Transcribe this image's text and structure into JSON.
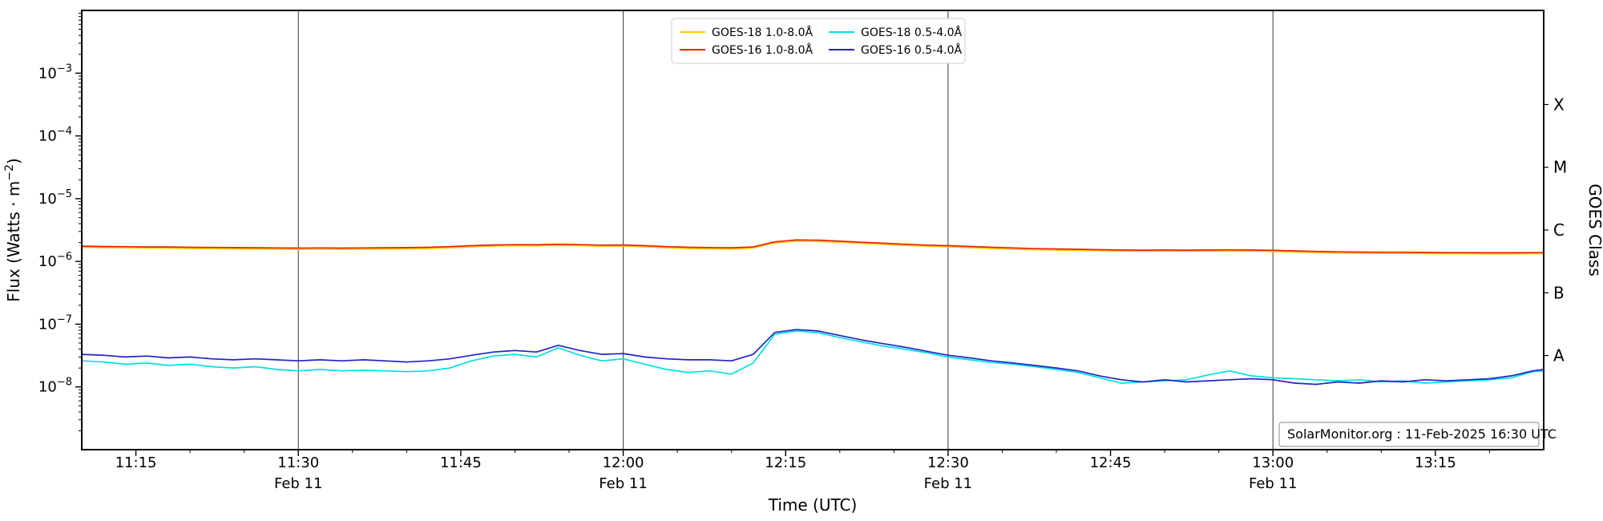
{
  "page": {
    "background": "#ffffff"
  },
  "annotation": {
    "text": "SolarMonitor.org : 11-Feb-2025 16:30 UTC"
  },
  "axes": {
    "xlabel": "Time (UTC)",
    "ylabel_prefix": "Flux (Watts · m",
    "ylabel_sup": "−2",
    "ylabel_suffix": ")",
    "ylabel_right": "GOES Class"
  },
  "chart_data": {
    "type": "line",
    "title": "",
    "x_unit": "minutes after 11:10 UTC",
    "x_range_minutes": [
      0,
      135
    ],
    "y_scale": "log",
    "y_range": [
      1e-09,
      0.01
    ],
    "y_major_tick_exponents": [
      -3,
      -4,
      -5,
      -6,
      -7,
      -8
    ],
    "x_minor_tick_step_minutes": 5,
    "x_major_ticks": [
      {
        "minute": 5,
        "label": "11:15",
        "sublabel": "",
        "gridline": false
      },
      {
        "minute": 20,
        "label": "11:30",
        "sublabel": "Feb 11",
        "gridline": true
      },
      {
        "minute": 35,
        "label": "11:45",
        "sublabel": "",
        "gridline": false
      },
      {
        "minute": 50,
        "label": "12:00",
        "sublabel": "Feb 11",
        "gridline": true
      },
      {
        "minute": 65,
        "label": "12:15",
        "sublabel": "",
        "gridline": false
      },
      {
        "minute": 80,
        "label": "12:30",
        "sublabel": "Feb 11",
        "gridline": true
      },
      {
        "minute": 95,
        "label": "12:45",
        "sublabel": "",
        "gridline": false
      },
      {
        "minute": 110,
        "label": "13:00",
        "sublabel": "Feb 11",
        "gridline": true
      },
      {
        "minute": 125,
        "label": "13:15",
        "sublabel": "",
        "gridline": false
      }
    ],
    "goes_classes": [
      {
        "label": "X",
        "log_center": -3.5
      },
      {
        "label": "M",
        "log_center": -4.5
      },
      {
        "label": "C",
        "log_center": -5.5
      },
      {
        "label": "B",
        "log_center": -6.5
      },
      {
        "label": "A",
        "log_center": -7.5
      }
    ],
    "legend": {
      "position": "top-center",
      "columns": 2
    },
    "x_minutes": [
      0,
      2,
      4,
      6,
      8,
      10,
      12,
      14,
      16,
      18,
      20,
      22,
      24,
      26,
      28,
      30,
      32,
      34,
      36,
      38,
      40,
      42,
      44,
      46,
      48,
      50,
      52,
      54,
      56,
      58,
      60,
      62,
      64,
      66,
      68,
      70,
      72,
      74,
      76,
      78,
      80,
      82,
      84,
      86,
      88,
      90,
      92,
      94,
      96,
      98,
      100,
      102,
      104,
      106,
      108,
      110,
      112,
      114,
      116,
      118,
      120,
      122,
      124,
      126,
      128,
      130,
      132,
      134,
      135
    ],
    "series": [
      {
        "name": "GOES-18 1.0-8.0Å",
        "color": "#ffcc00",
        "scale": 1e-06,
        "values": [
          1.68,
          1.66,
          1.65,
          1.63,
          1.63,
          1.61,
          1.6,
          1.59,
          1.58,
          1.57,
          1.56,
          1.57,
          1.56,
          1.57,
          1.58,
          1.59,
          1.61,
          1.65,
          1.71,
          1.76,
          1.78,
          1.77,
          1.8,
          1.78,
          1.75,
          1.76,
          1.71,
          1.65,
          1.61,
          1.59,
          1.58,
          1.63,
          1.97,
          2.11,
          2.09,
          2.02,
          1.94,
          1.87,
          1.8,
          1.75,
          1.71,
          1.66,
          1.61,
          1.57,
          1.54,
          1.52,
          1.5,
          1.48,
          1.46,
          1.45,
          1.46,
          1.45,
          1.46,
          1.47,
          1.46,
          1.44,
          1.41,
          1.38,
          1.36,
          1.35,
          1.34,
          1.34,
          1.33,
          1.32,
          1.32,
          1.32,
          1.32,
          1.33,
          1.33
        ]
      },
      {
        "name": "GOES-16 1.0-8.0Å",
        "color": "#ee2200",
        "scale": 1e-06,
        "values": [
          1.75,
          1.73,
          1.72,
          1.7,
          1.7,
          1.68,
          1.67,
          1.66,
          1.65,
          1.64,
          1.63,
          1.64,
          1.63,
          1.64,
          1.65,
          1.66,
          1.68,
          1.72,
          1.78,
          1.83,
          1.85,
          1.84,
          1.88,
          1.85,
          1.82,
          1.83,
          1.78,
          1.72,
          1.68,
          1.66,
          1.65,
          1.7,
          2.05,
          2.2,
          2.18,
          2.1,
          2.02,
          1.95,
          1.88,
          1.82,
          1.78,
          1.73,
          1.68,
          1.64,
          1.6,
          1.58,
          1.56,
          1.54,
          1.52,
          1.51,
          1.52,
          1.51,
          1.52,
          1.53,
          1.52,
          1.5,
          1.47,
          1.44,
          1.42,
          1.41,
          1.4,
          1.4,
          1.39,
          1.38,
          1.38,
          1.37,
          1.37,
          1.38,
          1.38
        ]
      },
      {
        "name": "GOES-18 0.5-4.0Å",
        "color": "#00e0e0",
        "scale": 1e-08,
        "values": [
          2.6,
          2.5,
          2.3,
          2.4,
          2.2,
          2.3,
          2.1,
          2.0,
          2.1,
          1.9,
          1.8,
          1.9,
          1.8,
          1.85,
          1.8,
          1.75,
          1.8,
          2.0,
          2.6,
          3.1,
          3.3,
          3.0,
          4.2,
          3.2,
          2.6,
          2.8,
          2.3,
          1.9,
          1.7,
          1.8,
          1.6,
          2.4,
          6.9,
          7.8,
          7.3,
          6.1,
          5.2,
          4.5,
          4.0,
          3.5,
          3.0,
          2.7,
          2.45,
          2.3,
          2.1,
          1.9,
          1.7,
          1.4,
          1.15,
          1.2,
          1.25,
          1.3,
          1.55,
          1.8,
          1.5,
          1.4,
          1.35,
          1.3,
          1.25,
          1.3,
          1.2,
          1.25,
          1.15,
          1.2,
          1.25,
          1.3,
          1.4,
          1.75,
          1.8
        ]
      },
      {
        "name": "GOES-16 0.5-4.0Å",
        "color": "#2222cc",
        "scale": 1e-08,
        "values": [
          3.3,
          3.2,
          3.0,
          3.1,
          2.9,
          3.0,
          2.8,
          2.7,
          2.8,
          2.7,
          2.6,
          2.7,
          2.6,
          2.7,
          2.6,
          2.5,
          2.6,
          2.8,
          3.2,
          3.6,
          3.8,
          3.6,
          4.6,
          3.8,
          3.3,
          3.4,
          3.0,
          2.8,
          2.7,
          2.7,
          2.6,
          3.3,
          7.4,
          8.2,
          7.8,
          6.6,
          5.6,
          4.9,
          4.3,
          3.7,
          3.2,
          2.9,
          2.6,
          2.4,
          2.2,
          2.0,
          1.8,
          1.5,
          1.3,
          1.2,
          1.3,
          1.2,
          1.25,
          1.3,
          1.35,
          1.3,
          1.15,
          1.1,
          1.2,
          1.15,
          1.25,
          1.2,
          1.3,
          1.25,
          1.3,
          1.35,
          1.5,
          1.8,
          1.9
        ]
      }
    ]
  }
}
